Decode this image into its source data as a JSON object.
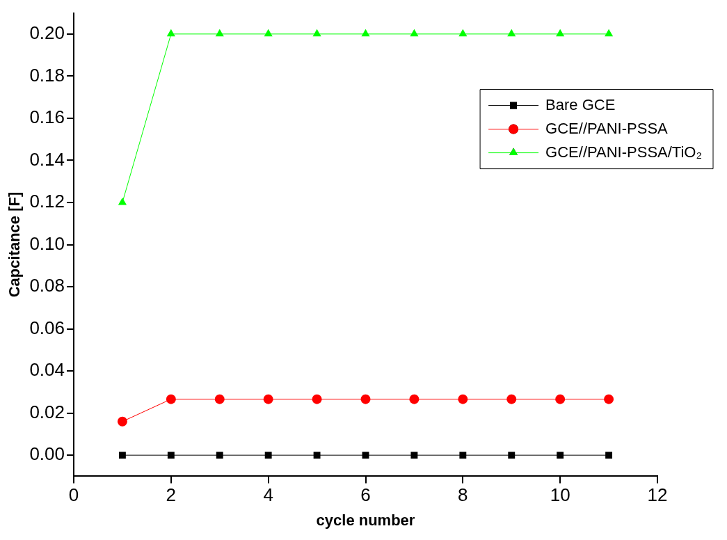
{
  "chart_data": {
    "type": "line",
    "xlabel": "cycle number",
    "ylabel": "Capcitance [F]",
    "x": [
      1,
      2,
      3,
      4,
      5,
      6,
      7,
      8,
      9,
      10,
      11
    ],
    "series": [
      {
        "name": "Bare GCE",
        "color": "#000000",
        "marker": "square",
        "values": [
          0,
          0,
          0,
          0,
          0,
          0,
          0,
          0,
          0,
          0,
          0
        ]
      },
      {
        "name": "GCE//PANI-PSSA",
        "color": "#ff0000",
        "marker": "circle",
        "values": [
          0.016,
          0.0266,
          0.0266,
          0.0266,
          0.0266,
          0.0266,
          0.0266,
          0.0266,
          0.0266,
          0.0266,
          0.0266
        ]
      },
      {
        "name": "GCE//PANI-PSSA/TiO₂",
        "color": "#00ff00",
        "marker": "triangle",
        "values": [
          0.12,
          0.2,
          0.2,
          0.2,
          0.2,
          0.2,
          0.2,
          0.2,
          0.2,
          0.2,
          0.2
        ]
      }
    ],
    "xlim": [
      0,
      12
    ],
    "xticks": [
      0,
      2,
      4,
      6,
      8,
      10,
      12
    ],
    "ylim": [
      -0.01,
      0.21
    ],
    "yticks": [
      {
        "value": 0,
        "label": "0.00"
      },
      {
        "value": 0.02,
        "label": "0.02"
      },
      {
        "value": 0.04,
        "label": "0.04"
      },
      {
        "value": 0.06,
        "label": "0.06"
      },
      {
        "value": 0.08,
        "label": "0.08"
      },
      {
        "value": 0.1,
        "label": "0.10"
      },
      {
        "value": 0.12,
        "label": "0.12"
      },
      {
        "value": 0.14,
        "label": "0.14"
      },
      {
        "value": 0.16,
        "label": "0.16"
      },
      {
        "value": 0.18,
        "label": "0.18"
      },
      {
        "value": 0.2,
        "label": "0.20"
      }
    ],
    "grid": false,
    "legend": "top right",
    "line_style": "solid"
  }
}
